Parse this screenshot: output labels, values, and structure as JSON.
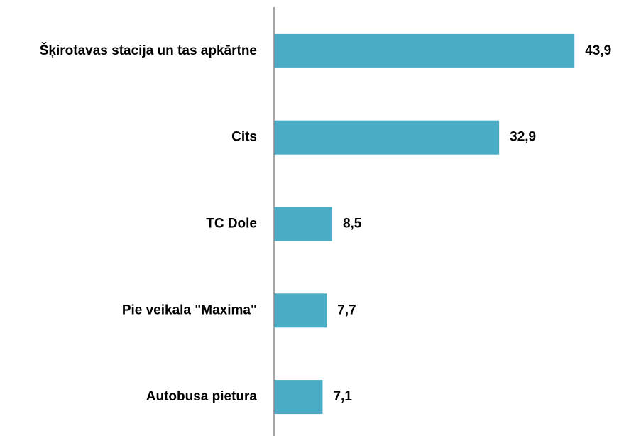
{
  "chart_data": {
    "type": "hbar",
    "categories": [
      "Šķirotavas stacija un tas apkārtne",
      "Cits",
      "TC Dole",
      "Pie veikala \"Maxima\"",
      "Autobusa pietura"
    ],
    "values": [
      43.9,
      32.9,
      8.5,
      7.7,
      7.1
    ],
    "value_labels": [
      "43,9",
      "32,9",
      "8,5",
      "7,7",
      "7,1"
    ],
    "color": "#4bacc6",
    "xlim": [
      0,
      50
    ]
  }
}
